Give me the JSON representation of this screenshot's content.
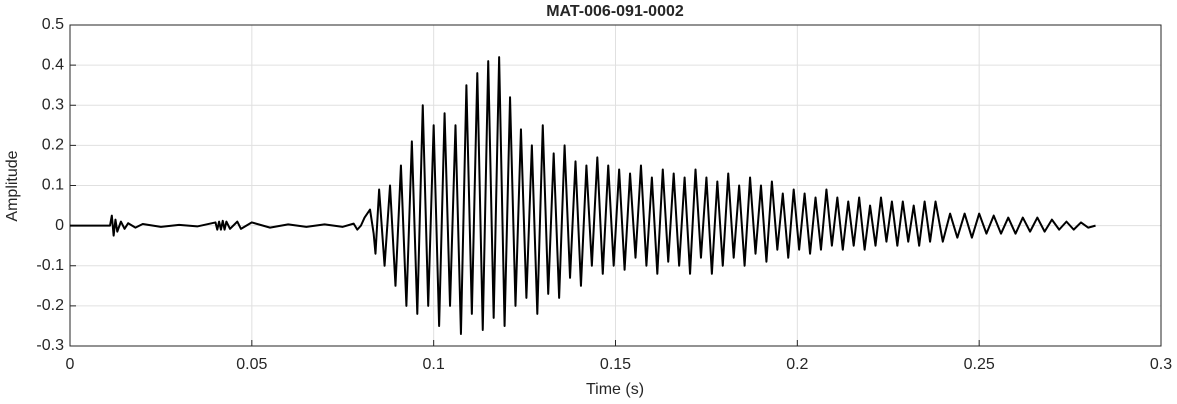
{
  "chart_data": {
    "type": "line",
    "title": "MAT-006-091-0002",
    "xlabel": "Time (s)",
    "ylabel": "Amplitude",
    "color": "#000000",
    "grid": true,
    "xlim": [
      0,
      0.3
    ],
    "ylim": [
      -0.3,
      0.5
    ],
    "xticks": [
      0,
      0.05,
      0.1,
      0.15,
      0.2,
      0.25,
      0.3
    ],
    "yticks": [
      -0.3,
      -0.2,
      -0.1,
      0,
      0.1,
      0.2,
      0.3,
      0.4,
      0.5
    ],
    "x": [
      0,
      0.011,
      0.0115,
      0.012,
      0.0125,
      0.013,
      0.014,
      0.015,
      0.016,
      0.018,
      0.02,
      0.025,
      0.03,
      0.035,
      0.04,
      0.0405,
      0.041,
      0.0415,
      0.042,
      0.0425,
      0.043,
      0.044,
      0.046,
      0.047,
      0.05,
      0.055,
      0.06,
      0.065,
      0.07,
      0.075,
      0.078,
      0.079,
      0.08,
      0.081,
      0.0825,
      0.0835,
      0.084,
      0.085,
      0.0865,
      0.088,
      0.0895,
      0.091,
      0.0925,
      0.094,
      0.0955,
      0.097,
      0.0985,
      0.1,
      0.1015,
      0.103,
      0.1045,
      0.106,
      0.1075,
      0.109,
      0.1105,
      0.112,
      0.1135,
      0.115,
      0.1165,
      0.118,
      0.1195,
      0.121,
      0.1225,
      0.124,
      0.1255,
      0.127,
      0.1285,
      0.13,
      0.1315,
      0.133,
      0.1345,
      0.136,
      0.1375,
      0.139,
      0.1405,
      0.142,
      0.1435,
      0.145,
      0.1465,
      0.148,
      0.1495,
      0.151,
      0.1525,
      0.154,
      0.1555,
      0.157,
      0.1585,
      0.16,
      0.1615,
      0.163,
      0.1645,
      0.166,
      0.1675,
      0.169,
      0.1705,
      0.172,
      0.1735,
      0.175,
      0.1765,
      0.178,
      0.1795,
      0.181,
      0.1825,
      0.184,
      0.1855,
      0.187,
      0.1885,
      0.19,
      0.1915,
      0.193,
      0.1945,
      0.196,
      0.1975,
      0.199,
      0.2005,
      0.202,
      0.2035,
      0.205,
      0.2065,
      0.208,
      0.2095,
      0.211,
      0.2125,
      0.214,
      0.2155,
      0.217,
      0.2185,
      0.22,
      0.2215,
      0.223,
      0.2245,
      0.226,
      0.2275,
      0.229,
      0.2305,
      0.232,
      0.2335,
      0.235,
      0.2365,
      0.238,
      0.24,
      0.242,
      0.244,
      0.246,
      0.248,
      0.25,
      0.252,
      0.254,
      0.256,
      0.258,
      0.26,
      0.262,
      0.264,
      0.266,
      0.268,
      0.27,
      0.272,
      0.274,
      0.276,
      0.278,
      0.28,
      0.282
    ],
    "values": [
      0,
      0,
      0.025,
      -0.025,
      0.015,
      -0.015,
      0.01,
      -0.008,
      0.006,
      -0.005,
      0.004,
      -0.003,
      0.002,
      -0.002,
      0.008,
      -0.01,
      0.01,
      -0.01,
      0.012,
      -0.01,
      0.01,
      -0.008,
      0.01,
      -0.008,
      0.008,
      -0.005,
      0.003,
      -0.003,
      0.003,
      -0.003,
      0.005,
      -0.01,
      0,
      0.02,
      0.04,
      -0.02,
      -0.07,
      0.09,
      -0.1,
      0.1,
      -0.15,
      0.15,
      -0.2,
      0.21,
      -0.22,
      0.3,
      -0.2,
      0.25,
      -0.25,
      0.28,
      -0.2,
      0.25,
      -0.27,
      0.35,
      -0.22,
      0.38,
      -0.26,
      0.41,
      -0.23,
      0.42,
      -0.25,
      0.32,
      -0.2,
      0.24,
      -0.18,
      0.2,
      -0.22,
      0.25,
      -0.17,
      0.18,
      -0.18,
      0.2,
      -0.13,
      0.16,
      -0.15,
      0.15,
      -0.1,
      0.17,
      -0.12,
      0.15,
      -0.1,
      0.14,
      -0.11,
      0.13,
      -0.08,
      0.15,
      -0.1,
      0.12,
      -0.12,
      0.14,
      -0.09,
      0.13,
      -0.1,
      0.12,
      -0.12,
      0.14,
      -0.08,
      0.12,
      -0.12,
      0.11,
      -0.1,
      0.13,
      -0.08,
      0.1,
      -0.1,
      0.12,
      -0.07,
      0.1,
      -0.09,
      0.11,
      -0.06,
      0.08,
      -0.08,
      0.09,
      -0.06,
      0.08,
      -0.07,
      0.07,
      -0.06,
      0.09,
      -0.05,
      0.07,
      -0.06,
      0.06,
      -0.05,
      0.07,
      -0.06,
      0.05,
      -0.05,
      0.07,
      -0.04,
      0.06,
      -0.05,
      0.06,
      -0.04,
      0.05,
      -0.05,
      0.06,
      -0.04,
      0.06,
      -0.04,
      0.03,
      -0.03,
      0.03,
      -0.03,
      0.03,
      -0.02,
      0.025,
      -0.02,
      0.02,
      -0.02,
      0.02,
      -0.015,
      0.02,
      -0.015,
      0.015,
      -0.01,
      0.01,
      -0.01,
      0.008,
      -0.005,
      0
    ]
  }
}
